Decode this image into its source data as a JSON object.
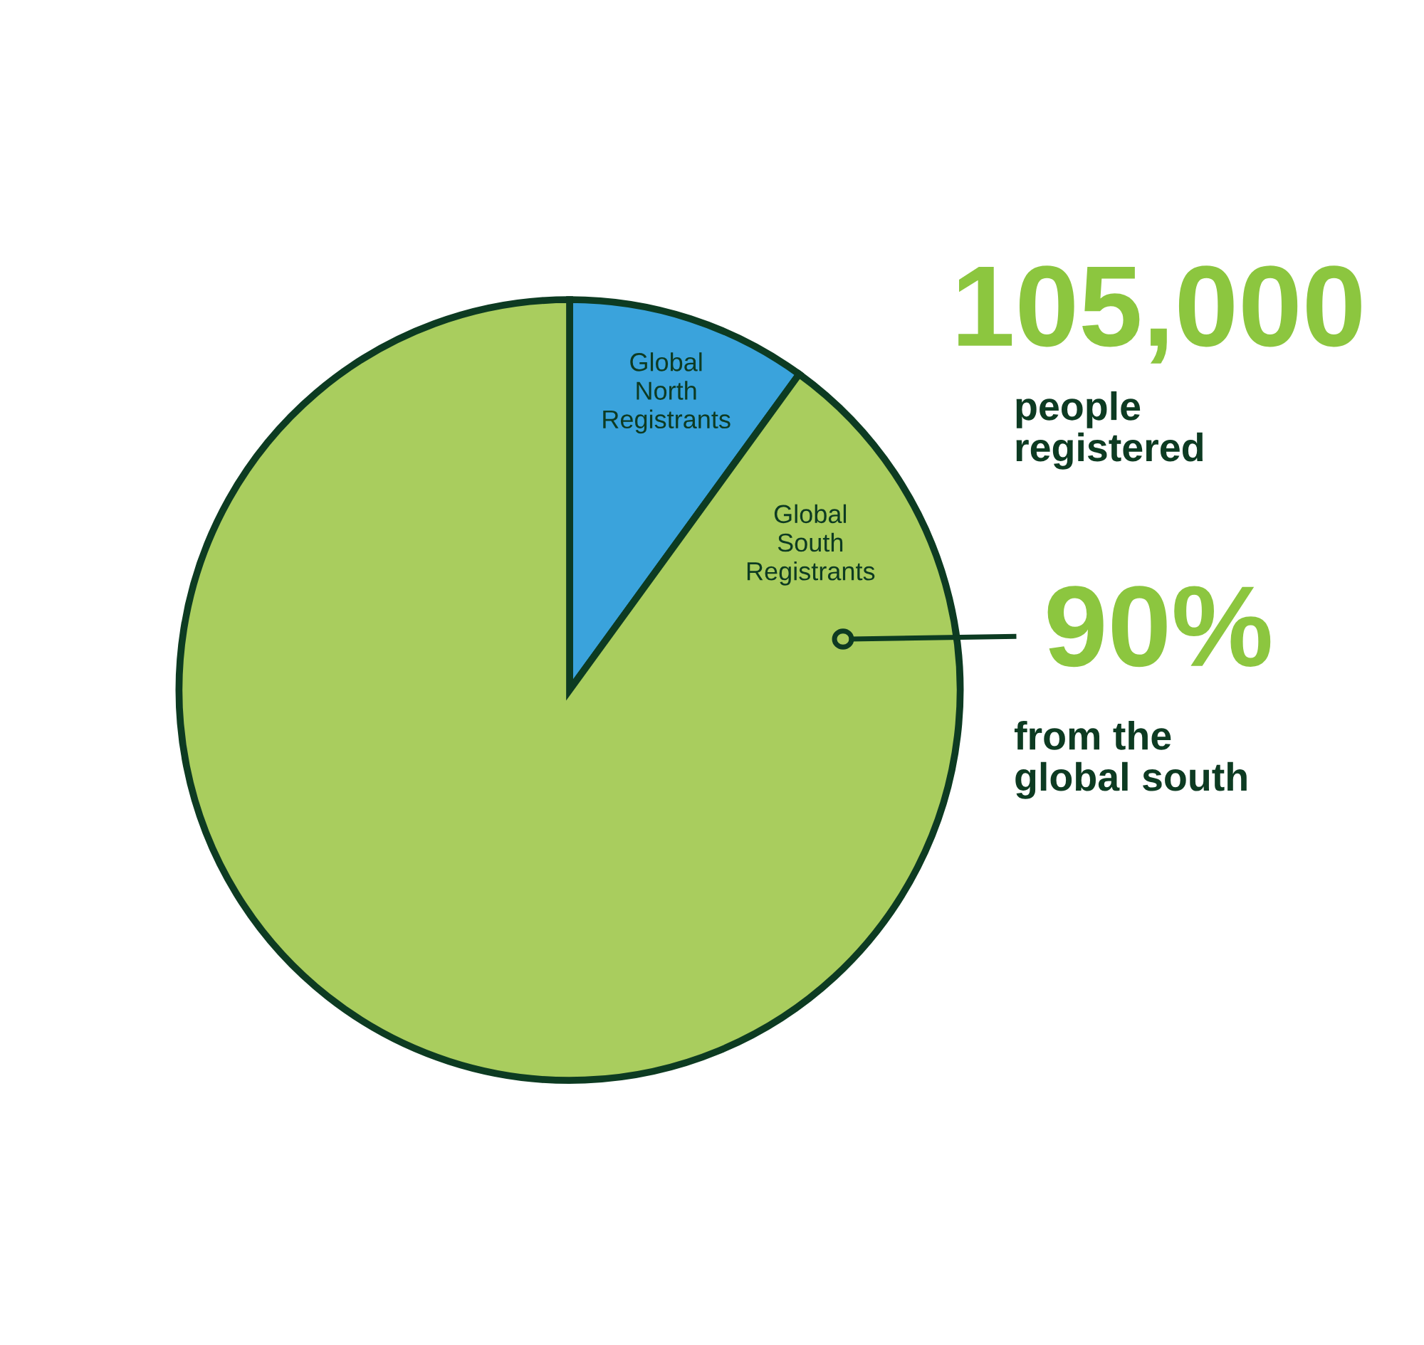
{
  "chart_data": {
    "type": "pie",
    "categories": [
      "Global\nNorth\nRegistrants",
      "Global\nSouth\nRegistrants"
    ],
    "values": [
      10,
      90
    ],
    "colors": [
      "#3aa3dc",
      "#a9cd5e"
    ],
    "annotations": [
      "105,000",
      "people\nregistered",
      "90%",
      "from the\nglobal south"
    ],
    "legend": false
  }
}
